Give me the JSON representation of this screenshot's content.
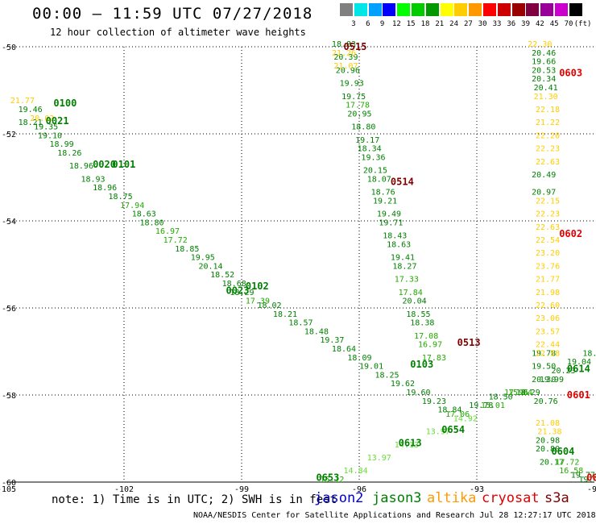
{
  "header": {
    "title": "00:00 – 11:59 UTC 07/27/2018",
    "subtitle": "12 hour collection of altimeter wave heights"
  },
  "legend": {
    "unit": "(ft)",
    "colors": [
      "#808080",
      "#00e5e5",
      "#00a0ff",
      "#0000ff",
      "#00ff00",
      "#00cc00",
      "#009900",
      "#ffff00",
      "#ffcc00",
      "#ff9900",
      "#ff0000",
      "#cc0000",
      "#990000",
      "#800040",
      "#990099",
      "#cc00cc",
      "#000000"
    ],
    "labels": [
      "3",
      "6",
      "9",
      "12",
      "15",
      "18",
      "21",
      "24",
      "27",
      "30",
      "33",
      "36",
      "39",
      "42",
      "45",
      "70"
    ]
  },
  "chart_data": {
    "type": "scatter",
    "xlim": [
      -105,
      -90
    ],
    "ylim": [
      -60,
      -50
    ],
    "x_ticks": [
      "-105",
      "-102",
      "-99",
      "-96",
      "-93",
      "-90"
    ],
    "y_ticks": [
      "-50",
      "-52",
      "-54",
      "-56",
      "-58",
      "-60"
    ],
    "pass_labels": [
      {
        "text": "0515",
        "x": -96.4,
        "y": -50.0,
        "color": "#800000"
      },
      {
        "text": "0514",
        "x": -95.2,
        "y": -53.1,
        "color": "#800000"
      },
      {
        "text": "0513",
        "x": -93.5,
        "y": -56.8,
        "color": "#800000"
      },
      {
        "text": "0100",
        "x": -103.8,
        "y": -51.3,
        "color": "#008000"
      },
      {
        "text": "0021",
        "x": -104.0,
        "y": -51.7,
        "color": "#008000"
      },
      {
        "text": "0020",
        "x": -102.8,
        "y": -52.7,
        "color": "#008000"
      },
      {
        "text": "0101",
        "x": -102.3,
        "y": -52.7,
        "color": "#008000"
      },
      {
        "text": "0102",
        "x": -98.9,
        "y": -55.5,
        "color": "#008000"
      },
      {
        "text": "0023",
        "x": -99.4,
        "y": -55.6,
        "color": "#008000"
      },
      {
        "text": "0103",
        "x": -94.7,
        "y": -57.3,
        "color": "#008000"
      },
      {
        "text": "0603",
        "x": -90.9,
        "y": -50.6,
        "color": "#e00000"
      },
      {
        "text": "0602",
        "x": -90.9,
        "y": -54.3,
        "color": "#e00000"
      },
      {
        "text": "0601",
        "x": -90.7,
        "y": -58.0,
        "color": "#e00000"
      },
      {
        "text": "0614",
        "x": -90.7,
        "y": -57.4,
        "color": "#008000"
      },
      {
        "text": "0604",
        "x": -91.1,
        "y": -59.3,
        "color": "#008000"
      },
      {
        "text": "0654",
        "x": -93.9,
        "y": -58.8,
        "color": "#008000"
      },
      {
        "text": "0613",
        "x": -95.0,
        "y": -59.1,
        "color": "#008000"
      },
      {
        "text": "0653",
        "x": -97.1,
        "y": -59.9,
        "color": "#008000"
      },
      {
        "text": "060",
        "x": -90.2,
        "y": -59.9,
        "color": "#e00000"
      }
    ],
    "tracks": [
      {
        "color_key": "jason3",
        "points": [
          {
            "x": -96.7,
            "y": -50.0,
            "v": "18.83"
          },
          {
            "x": -96.65,
            "y": -50.3,
            "v": "20.39"
          },
          {
            "x": -96.6,
            "y": -50.6,
            "v": "20.96"
          },
          {
            "x": -96.5,
            "y": -50.9,
            "v": "19.93"
          },
          {
            "x": -96.45,
            "y": -51.2,
            "v": "19.75"
          },
          {
            "x": -96.35,
            "y": -51.4,
            "v": "17.78"
          },
          {
            "x": -96.3,
            "y": -51.6,
            "v": "20.95"
          },
          {
            "x": -96.2,
            "y": -51.9,
            "v": "18.80"
          },
          {
            "x": -96.1,
            "y": -52.2,
            "v": "19.17"
          },
          {
            "x": -96.05,
            "y": -52.4,
            "v": "18.34"
          },
          {
            "x": -95.95,
            "y": -52.6,
            "v": "19.36"
          },
          {
            "x": -95.9,
            "y": -52.9,
            "v": "20.15"
          },
          {
            "x": -95.8,
            "y": -53.1,
            "v": "18.07"
          },
          {
            "x": -95.7,
            "y": -53.4,
            "v": "18.76"
          },
          {
            "x": -95.65,
            "y": -53.6,
            "v": "19.21"
          },
          {
            "x": -95.55,
            "y": -53.9,
            "v": "19.49"
          },
          {
            "x": -95.5,
            "y": -54.1,
            "v": "19.71"
          },
          {
            "x": -95.4,
            "y": -54.4,
            "v": "18.43"
          },
          {
            "x": -95.3,
            "y": -54.6,
            "v": "18.63"
          },
          {
            "x": -95.2,
            "y": -54.9,
            "v": "19.41"
          },
          {
            "x": -95.15,
            "y": -55.1,
            "v": "18.27"
          },
          {
            "x": -95.1,
            "y": -55.4,
            "v": "17.33"
          },
          {
            "x": -95.0,
            "y": -55.7,
            "v": "17.84"
          },
          {
            "x": -94.9,
            "y": -55.9,
            "v": "20.04"
          },
          {
            "x": -94.8,
            "y": -56.2,
            "v": "18.55"
          },
          {
            "x": -94.7,
            "y": -56.4,
            "v": "18.38"
          },
          {
            "x": -94.6,
            "y": -56.7,
            "v": "17.08"
          },
          {
            "x": -94.5,
            "y": -56.9,
            "v": "16.97"
          },
          {
            "x": -94.4,
            "y": -57.2,
            "v": "17.83"
          }
        ]
      },
      {
        "color_key": "altika",
        "points": [
          {
            "x": -96.65,
            "y": -50.5,
            "v": "21.07"
          },
          {
            "x": -96.7,
            "y": -50.2,
            "v": "21.26"
          }
        ]
      },
      {
        "color_key": "jason3",
        "points": [
          {
            "x": -104.7,
            "y": -51.5,
            "v": "19.46"
          },
          {
            "x": -104.7,
            "y": -51.8,
            "v": "18.21"
          },
          {
            "x": -104.3,
            "y": -51.9,
            "v": "19.35"
          },
          {
            "x": -104.2,
            "y": -52.1,
            "v": "19.10"
          },
          {
            "x": -103.9,
            "y": -52.3,
            "v": "18.99"
          },
          {
            "x": -103.7,
            "y": -52.5,
            "v": "18.26"
          },
          {
            "x": -103.4,
            "y": -52.8,
            "v": "18.96"
          },
          {
            "x": -103.1,
            "y": -53.1,
            "v": "18.93"
          },
          {
            "x": -102.8,
            "y": -53.3,
            "v": "18.96"
          },
          {
            "x": -102.4,
            "y": -53.5,
            "v": "18.75"
          },
          {
            "x": -102.1,
            "y": -53.7,
            "v": "17.94"
          },
          {
            "x": -101.8,
            "y": -53.9,
            "v": "18.63"
          },
          {
            "x": -101.6,
            "y": -54.1,
            "v": "18.80"
          },
          {
            "x": -101.2,
            "y": -54.3,
            "v": "16.97"
          },
          {
            "x": -101.0,
            "y": -54.5,
            "v": "17.72"
          },
          {
            "x": -100.7,
            "y": -54.7,
            "v": "18.85"
          },
          {
            "x": -100.3,
            "y": -54.9,
            "v": "19.95"
          },
          {
            "x": -100.1,
            "y": -55.1,
            "v": "20.14"
          },
          {
            "x": -99.8,
            "y": -55.3,
            "v": "18.52"
          },
          {
            "x": -99.5,
            "y": -55.5,
            "v": "18.68"
          },
          {
            "x": -99.3,
            "y": -55.7,
            "v": "18.29"
          },
          {
            "x": -98.9,
            "y": -55.9,
            "v": "17.39"
          },
          {
            "x": -98.6,
            "y": -56.0,
            "v": "18.02"
          },
          {
            "x": -98.2,
            "y": -56.2,
            "v": "18.21"
          },
          {
            "x": -97.8,
            "y": -56.4,
            "v": "18.57"
          },
          {
            "x": -97.4,
            "y": -56.6,
            "v": "18.48"
          },
          {
            "x": -97.0,
            "y": -56.8,
            "v": "19.37"
          },
          {
            "x": -96.7,
            "y": -57.0,
            "v": "18.64"
          },
          {
            "x": -96.3,
            "y": -57.2,
            "v": "18.09"
          },
          {
            "x": -96.0,
            "y": -57.4,
            "v": "19.01"
          },
          {
            "x": -95.6,
            "y": -57.6,
            "v": "18.25"
          },
          {
            "x": -95.2,
            "y": -57.8,
            "v": "19.62"
          },
          {
            "x": -94.8,
            "y": -58.0,
            "v": "19.60"
          },
          {
            "x": -94.4,
            "y": -58.2,
            "v": "19.23"
          },
          {
            "x": -94.0,
            "y": -58.4,
            "v": "18.84"
          }
        ]
      },
      {
        "color_key": "altika",
        "points": [
          {
            "x": -104.9,
            "y": -51.3,
            "v": "21.77"
          },
          {
            "x": -104.4,
            "y": -51.7,
            "v": "20.02"
          }
        ]
      },
      {
        "color_key": "jason3",
        "points": [
          {
            "x": -91.6,
            "y": -50.2,
            "v": "20.46"
          },
          {
            "x": -91.6,
            "y": -50.4,
            "v": "19.66"
          },
          {
            "x": -91.6,
            "y": -50.6,
            "v": "20.53"
          },
          {
            "x": -91.6,
            "y": -50.8,
            "v": "20.34"
          },
          {
            "x": -91.55,
            "y": -51.0,
            "v": "20.41"
          },
          {
            "x": -91.6,
            "y": -53.0,
            "v": "20.49"
          },
          {
            "x": -91.6,
            "y": -53.4,
            "v": "20.97"
          },
          {
            "x": -91.6,
            "y": -57.1,
            "v": "19.78"
          },
          {
            "x": -91.6,
            "y": -57.4,
            "v": "19.50"
          },
          {
            "x": -91.6,
            "y": -57.7,
            "v": "20.30"
          },
          {
            "x": -91.55,
            "y": -58.2,
            "v": "20.76"
          },
          {
            "x": -91.5,
            "y": -59.1,
            "v": "20.98"
          },
          {
            "x": -91.5,
            "y": -59.3,
            "v": "20.80"
          },
          {
            "x": -91.4,
            "y": -59.6,
            "v": "20.17"
          }
        ]
      },
      {
        "color_key": "altika",
        "points": [
          {
            "x": -91.7,
            "y": -50.0,
            "v": "22.30"
          },
          {
            "x": -91.55,
            "y": -51.2,
            "v": "21.30"
          },
          {
            "x": -91.5,
            "y": -51.5,
            "v": "22.18"
          },
          {
            "x": -91.5,
            "y": -51.8,
            "v": "21.22"
          },
          {
            "x": -91.5,
            "y": -52.1,
            "v": "22.20"
          },
          {
            "x": -91.5,
            "y": -52.4,
            "v": "22.23"
          },
          {
            "x": -91.5,
            "y": -52.7,
            "v": "22.63"
          },
          {
            "x": -91.5,
            "y": -53.6,
            "v": "22.15"
          },
          {
            "x": -91.5,
            "y": -53.9,
            "v": "22.23"
          },
          {
            "x": -91.5,
            "y": -54.2,
            "v": "22.63"
          },
          {
            "x": -91.5,
            "y": -54.5,
            "v": "22.54"
          },
          {
            "x": -91.5,
            "y": -54.8,
            "v": "23.20"
          },
          {
            "x": -91.5,
            "y": -55.1,
            "v": "23.76"
          },
          {
            "x": -91.5,
            "y": -55.4,
            "v": "21.77"
          },
          {
            "x": -91.5,
            "y": -55.7,
            "v": "21.98"
          },
          {
            "x": -91.5,
            "y": -56.0,
            "v": "22.60"
          },
          {
            "x": -91.5,
            "y": -56.3,
            "v": "23.06"
          },
          {
            "x": -91.5,
            "y": -56.6,
            "v": "23.57"
          },
          {
            "x": -91.5,
            "y": -56.9,
            "v": "22.44"
          },
          {
            "x": -91.5,
            "y": -57.1,
            "v": "22.58"
          },
          {
            "x": -91.5,
            "y": -58.7,
            "v": "21.08"
          },
          {
            "x": -91.45,
            "y": -58.9,
            "v": "21.38"
          }
        ]
      },
      {
        "color_key": "jason2",
        "points": [
          {
            "x": -97.0,
            "y": -60.0,
            "v": "15.12"
          },
          {
            "x": -96.4,
            "y": -59.8,
            "v": "14.84"
          },
          {
            "x": -95.8,
            "y": -59.5,
            "v": "13.97"
          },
          {
            "x": -95.1,
            "y": -59.2,
            "v": "14.13"
          },
          {
            "x": -94.3,
            "y": -58.9,
            "v": "13.97"
          },
          {
            "x": -93.6,
            "y": -58.6,
            "v": "14.92"
          },
          {
            "x": -92.9,
            "y": -58.3,
            "v": "15.01"
          },
          {
            "x": -92.2,
            "y": -58.0,
            "v": "15.84"
          }
        ]
      },
      {
        "color_key": "jason3",
        "points": [
          {
            "x": -93.8,
            "y": -58.5,
            "v": "17.06"
          },
          {
            "x": -93.2,
            "y": -58.3,
            "v": "19.78"
          },
          {
            "x": -92.7,
            "y": -58.1,
            "v": "18.50"
          },
          {
            "x": -92.3,
            "y": -58.0,
            "v": "17.96"
          },
          {
            "x": -92.0,
            "y": -58.0,
            "v": "18.29"
          },
          {
            "x": -91.4,
            "y": -57.7,
            "v": "19.99"
          },
          {
            "x": -91.1,
            "y": -57.5,
            "v": "20.23"
          },
          {
            "x": -90.7,
            "y": -57.3,
            "v": "19.04"
          },
          {
            "x": -90.3,
            "y": -57.1,
            "v": "18.02"
          },
          {
            "x": -91.0,
            "y": -59.6,
            "v": "17.72"
          },
          {
            "x": -90.9,
            "y": -59.8,
            "v": "16.58"
          },
          {
            "x": -90.6,
            "y": -59.9,
            "v": "19.77"
          },
          {
            "x": -90.4,
            "y": -60.0,
            "v": "19.43"
          }
        ]
      }
    ]
  },
  "footer": {
    "note": "note: 1) Time is in UTC; 2) SWH is in feet",
    "sat_jason2": "jason2",
    "sat_jason3": "jason3",
    "sat_altika": "altika",
    "sat_cryosat": "cryosat",
    "sat_s3a": "s3a",
    "credit": "NOAA/NESDIS Center for Satellite Applications and Research    Jul 28 12:27:17 UTC 2018",
    "colors": {
      "jason2": "#0000cc",
      "jason3": "#008000",
      "altika": "#ff9900",
      "cryosat": "#e00000",
      "s3a": "#800000"
    }
  }
}
